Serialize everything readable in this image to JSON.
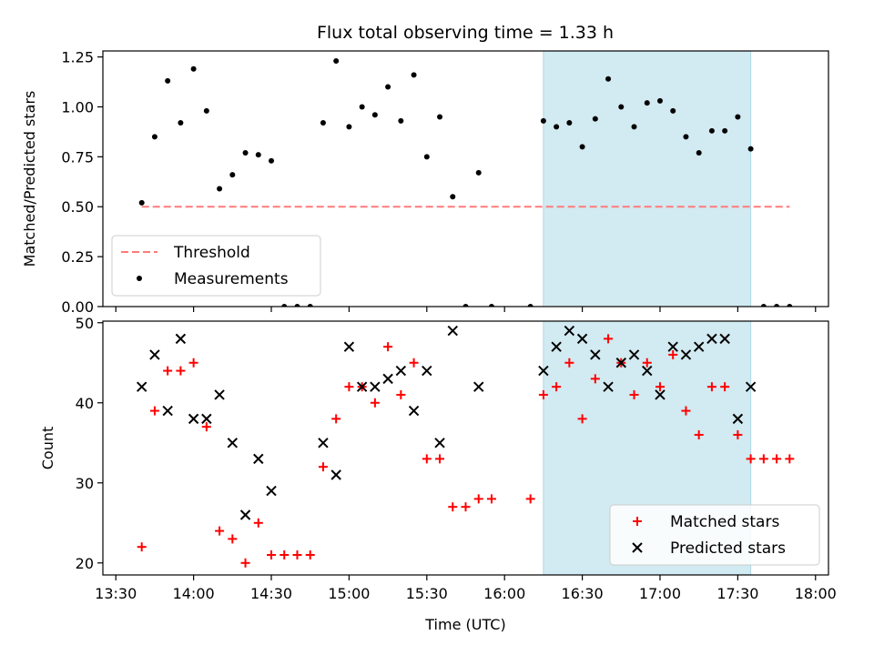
{
  "figure_title": "Flux total observing time = 1.33 h",
  "colors": {
    "threshold": "#ff7a7a",
    "measurements": "#000000",
    "matched": "#ff0000",
    "predicted": "#000000",
    "span": "#add8e6"
  },
  "chart_data": [
    {
      "type": "scatter",
      "ylabel": "Matched/Predicted stars",
      "ylim": [
        0,
        1.28
      ],
      "yticks": [
        0.0,
        0.25,
        0.5,
        0.75,
        1.0,
        1.25
      ],
      "ytick_labels": [
        "0.00",
        "0.25",
        "0.50",
        "0.75",
        "1.00",
        "1.25"
      ],
      "highlight_span": [
        "16:15",
        "17:35"
      ],
      "threshold": {
        "name": "Threshold",
        "value": 0.5,
        "x_range": [
          "13:40",
          "17:50"
        ],
        "style": "dashed"
      },
      "legend": [
        "Threshold",
        "Measurements"
      ],
      "legend_position": "lower-left",
      "series": [
        {
          "name": "Measurements",
          "marker": "dot",
          "points": [
            [
              "13:40",
              0.52
            ],
            [
              "13:45",
              0.85
            ],
            [
              "13:50",
              1.13
            ],
            [
              "13:55",
              0.92
            ],
            [
              "14:00",
              1.19
            ],
            [
              "14:05",
              0.98
            ],
            [
              "14:10",
              0.59
            ],
            [
              "14:15",
              0.66
            ],
            [
              "14:20",
              0.77
            ],
            [
              "14:25",
              0.76
            ],
            [
              "14:30",
              0.73
            ],
            [
              "14:35",
              0.0
            ],
            [
              "14:40",
              0.0
            ],
            [
              "14:45",
              0.0
            ],
            [
              "14:50",
              0.92
            ],
            [
              "14:55",
              1.23
            ],
            [
              "15:00",
              0.9
            ],
            [
              "15:05",
              1.0
            ],
            [
              "15:10",
              0.96
            ],
            [
              "15:15",
              1.1
            ],
            [
              "15:20",
              0.93
            ],
            [
              "15:25",
              1.16
            ],
            [
              "15:30",
              0.75
            ],
            [
              "15:35",
              0.95
            ],
            [
              "15:40",
              0.55
            ],
            [
              "15:45",
              0.0
            ],
            [
              "15:50",
              0.67
            ],
            [
              "15:55",
              0.0
            ],
            [
              "16:10",
              0.0
            ],
            [
              "16:15",
              0.93
            ],
            [
              "16:20",
              0.9
            ],
            [
              "16:25",
              0.92
            ],
            [
              "16:30",
              0.8
            ],
            [
              "16:35",
              0.94
            ],
            [
              "16:40",
              1.14
            ],
            [
              "16:45",
              1.0
            ],
            [
              "16:50",
              0.9
            ],
            [
              "16:55",
              1.02
            ],
            [
              "17:00",
              1.03
            ],
            [
              "17:05",
              0.98
            ],
            [
              "17:10",
              0.85
            ],
            [
              "17:15",
              0.77
            ],
            [
              "17:20",
              0.88
            ],
            [
              "17:25",
              0.88
            ],
            [
              "17:30",
              0.95
            ],
            [
              "17:35",
              0.79
            ],
            [
              "17:40",
              0.0
            ],
            [
              "17:45",
              0.0
            ],
            [
              "17:50",
              0.0
            ]
          ]
        }
      ]
    },
    {
      "type": "scatter",
      "xlabel": "Time (UTC)",
      "ylabel": "Count",
      "ylim": [
        18.5,
        50.2
      ],
      "yticks": [
        20,
        30,
        40,
        50
      ],
      "ytick_labels": [
        "20",
        "30",
        "40",
        "50"
      ],
      "xlim": [
        "13:25",
        "18:05"
      ],
      "xticks": [
        "13:30",
        "14:00",
        "14:30",
        "15:00",
        "15:30",
        "16:00",
        "16:30",
        "17:00",
        "17:30",
        "18:00"
      ],
      "highlight_span": [
        "16:15",
        "17:35"
      ],
      "legend": [
        "Matched stars",
        "Predicted stars"
      ],
      "legend_position": "lower-right",
      "series": [
        {
          "name": "Matched stars",
          "marker": "plus",
          "points": [
            [
              "13:40",
              22
            ],
            [
              "13:45",
              39
            ],
            [
              "13:50",
              44
            ],
            [
              "13:55",
              44
            ],
            [
              "14:00",
              45
            ],
            [
              "14:05",
              37
            ],
            [
              "14:10",
              24
            ],
            [
              "14:15",
              23
            ],
            [
              "14:20",
              20
            ],
            [
              "14:25",
              25
            ],
            [
              "14:30",
              21
            ],
            [
              "14:35",
              21
            ],
            [
              "14:40",
              21
            ],
            [
              "14:45",
              21
            ],
            [
              "14:50",
              32
            ],
            [
              "14:55",
              38
            ],
            [
              "15:00",
              42
            ],
            [
              "15:05",
              42
            ],
            [
              "15:10",
              40
            ],
            [
              "15:15",
              47
            ],
            [
              "15:20",
              41
            ],
            [
              "15:25",
              45
            ],
            [
              "15:30",
              33
            ],
            [
              "15:35",
              33
            ],
            [
              "15:40",
              27
            ],
            [
              "15:45",
              27
            ],
            [
              "15:50",
              28
            ],
            [
              "15:55",
              28
            ],
            [
              "16:10",
              28
            ],
            [
              "16:15",
              41
            ],
            [
              "16:20",
              42
            ],
            [
              "16:25",
              45
            ],
            [
              "16:30",
              38
            ],
            [
              "16:35",
              43
            ],
            [
              "16:40",
              48
            ],
            [
              "16:45",
              45
            ],
            [
              "16:50",
              41
            ],
            [
              "16:55",
              45
            ],
            [
              "17:00",
              42
            ],
            [
              "17:05",
              46
            ],
            [
              "17:10",
              39
            ],
            [
              "17:15",
              36
            ],
            [
              "17:20",
              42
            ],
            [
              "17:25",
              42
            ],
            [
              "17:30",
              36
            ],
            [
              "17:35",
              33
            ],
            [
              "17:40",
              33
            ],
            [
              "17:45",
              33
            ],
            [
              "17:50",
              33
            ]
          ]
        },
        {
          "name": "Predicted stars",
          "marker": "x",
          "points": [
            [
              "13:40",
              42
            ],
            [
              "13:45",
              46
            ],
            [
              "13:50",
              39
            ],
            [
              "13:55",
              48
            ],
            [
              "14:00",
              38
            ],
            [
              "14:05",
              38
            ],
            [
              "14:10",
              41
            ],
            [
              "14:15",
              35
            ],
            [
              "14:20",
              26
            ],
            [
              "14:25",
              33
            ],
            [
              "14:30",
              29
            ],
            [
              "14:50",
              35
            ],
            [
              "14:55",
              31
            ],
            [
              "15:00",
              47
            ],
            [
              "15:05",
              42
            ],
            [
              "15:10",
              42
            ],
            [
              "15:15",
              43
            ],
            [
              "15:20",
              44
            ],
            [
              "15:25",
              39
            ],
            [
              "15:30",
              44
            ],
            [
              "15:35",
              35
            ],
            [
              "15:40",
              49
            ],
            [
              "15:50",
              42
            ],
            [
              "16:15",
              44
            ],
            [
              "16:20",
              47
            ],
            [
              "16:25",
              49
            ],
            [
              "16:30",
              48
            ],
            [
              "16:35",
              46
            ],
            [
              "16:40",
              42
            ],
            [
              "16:45",
              45
            ],
            [
              "16:50",
              46
            ],
            [
              "16:55",
              44
            ],
            [
              "17:00",
              41
            ],
            [
              "17:05",
              47
            ],
            [
              "17:10",
              46
            ],
            [
              "17:15",
              47
            ],
            [
              "17:20",
              48
            ],
            [
              "17:25",
              48
            ],
            [
              "17:30",
              38
            ],
            [
              "17:35",
              42
            ]
          ]
        }
      ]
    }
  ]
}
